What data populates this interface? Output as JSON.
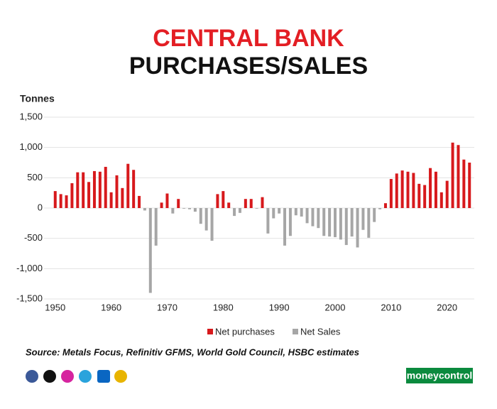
{
  "chart_data": {
    "type": "bar",
    "title": "CENTRAL BANK",
    "subtitle": "PURCHASES/SALES",
    "y_label": "Tonnes",
    "source": "Source: Metals Focus, Refinitiv GFMS, World Gold Council, HSBC estimates",
    "brand": "moneycontrol",
    "x": [
      1950,
      1951,
      1952,
      1953,
      1954,
      1955,
      1956,
      1957,
      1958,
      1959,
      1960,
      1961,
      1962,
      1963,
      1964,
      1965,
      1966,
      1967,
      1968,
      1969,
      1970,
      1971,
      1972,
      1973,
      1974,
      1975,
      1976,
      1977,
      1978,
      1979,
      1980,
      1981,
      1982,
      1983,
      1984,
      1985,
      1986,
      1987,
      1988,
      1989,
      1990,
      1991,
      1992,
      1993,
      1994,
      1995,
      1996,
      1997,
      1998,
      1999,
      2000,
      2001,
      2002,
      2003,
      2004,
      2005,
      2006,
      2007,
      2008,
      2009,
      2010,
      2011,
      2012,
      2013,
      2014,
      2015,
      2016,
      2017,
      2018,
      2019,
      2020,
      2021,
      2022,
      2023,
      2024
    ],
    "series": [
      {
        "name": "Net purchases",
        "color": "#d7191c",
        "values": [
          280,
          230,
          210,
          410,
          590,
          590,
          430,
          610,
          600,
          680,
          260,
          540,
          330,
          730,
          630,
          200,
          null,
          null,
          null,
          90,
          240,
          null,
          150,
          null,
          null,
          null,
          null,
          null,
          null,
          230,
          280,
          90,
          null,
          null,
          150,
          150,
          null,
          180,
          null,
          null,
          null,
          null,
          null,
          null,
          null,
          null,
          null,
          null,
          null,
          null,
          null,
          null,
          null,
          null,
          null,
          null,
          null,
          null,
          null,
          80,
          480,
          570,
          620,
          600,
          580,
          400,
          380,
          660,
          600,
          260,
          450,
          1080,
          1040,
          800,
          750
        ]
      },
      {
        "name": "Net Sales",
        "color": "#a6a6a6",
        "values": [
          null,
          null,
          null,
          null,
          null,
          null,
          null,
          null,
          null,
          null,
          null,
          null,
          null,
          null,
          null,
          null,
          -40,
          -1400,
          -620,
          null,
          null,
          -90,
          null,
          -10,
          -20,
          -60,
          -260,
          -370,
          -540,
          null,
          null,
          null,
          -130,
          -80,
          null,
          null,
          -10,
          null,
          -420,
          -170,
          -90,
          -620,
          -460,
          -120,
          -140,
          -250,
          -300,
          -330,
          -460,
          -470,
          -480,
          -520,
          -610,
          -470,
          -650,
          -360,
          -490,
          -230,
          -20,
          null,
          null,
          null,
          null,
          null,
          null,
          null,
          null,
          null,
          null,
          null,
          null,
          null,
          null,
          null,
          null
        ]
      }
    ],
    "xlim": [
      1948,
      2026
    ],
    "xticks": [
      1950,
      1960,
      1970,
      1980,
      1990,
      2000,
      2010,
      2020
    ],
    "ylim": [
      -1500,
      1500
    ],
    "yticks": [
      {
        "value": -1500,
        "label": "-1,500"
      },
      {
        "value": -1000,
        "label": "-1,000"
      },
      -500,
      0,
      500,
      {
        "value": 1000,
        "label": "1,000"
      },
      {
        "value": 1500,
        "label": "1,500"
      }
    ],
    "grid": true
  }
}
